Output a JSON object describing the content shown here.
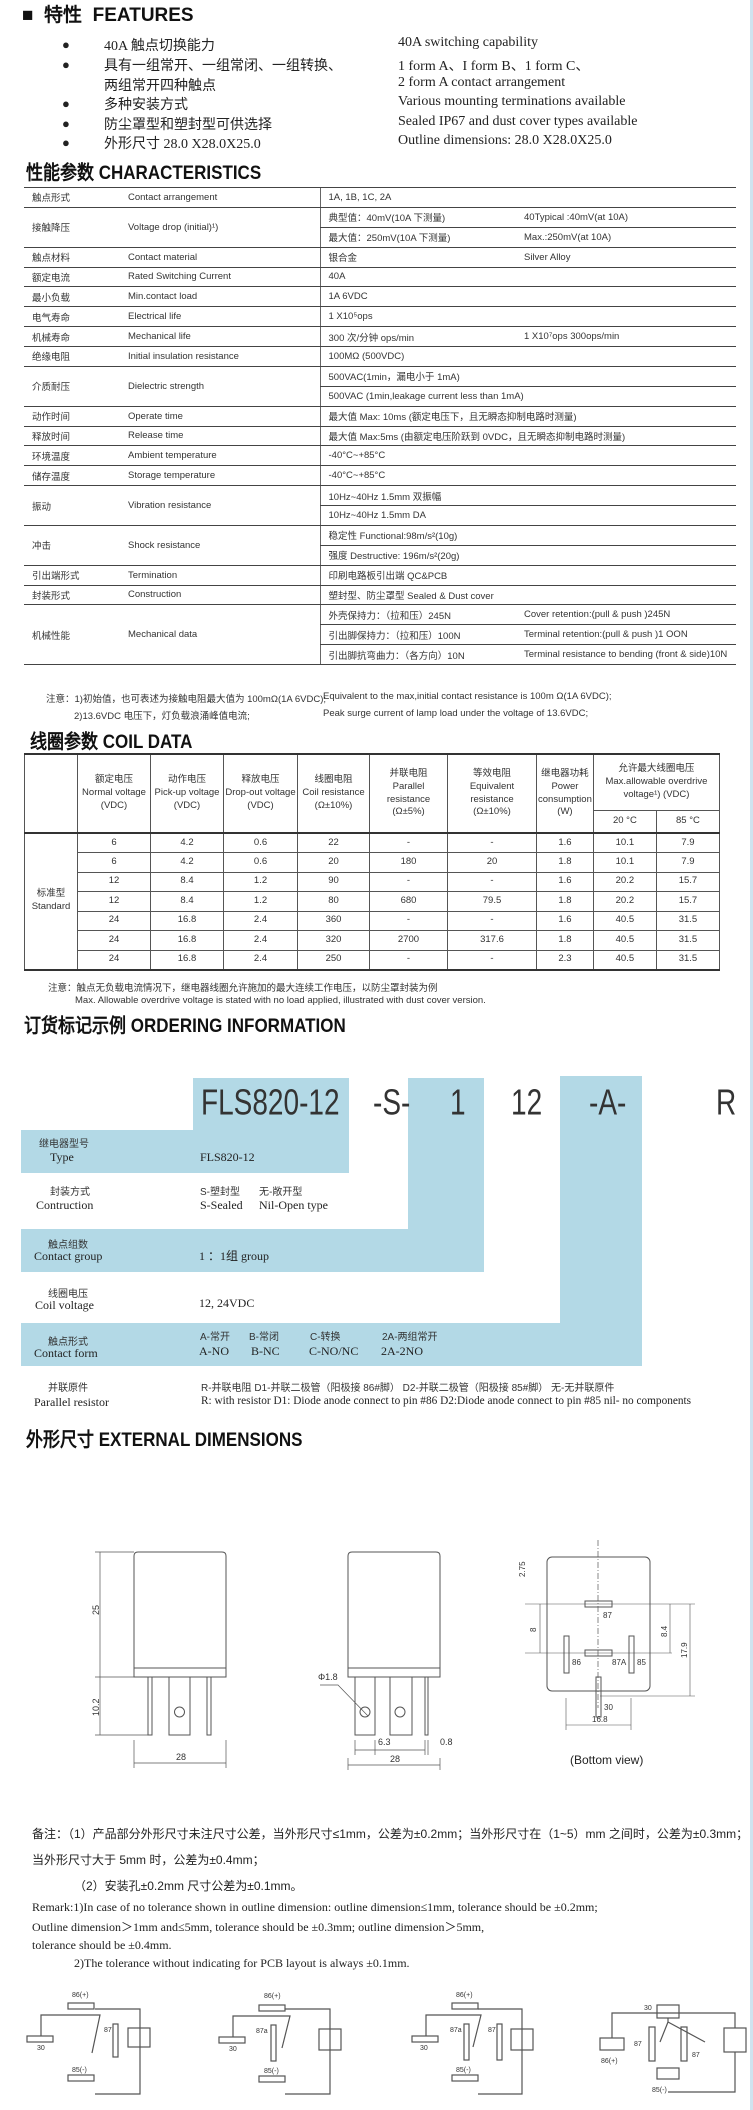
{
  "features": {
    "marker": "■",
    "title_cn": "特性",
    "title_en": "FEATURES",
    "items": [
      {
        "cn": "40A 触点切换能力",
        "en": "40A switching capability"
      },
      {
        "cn": "具有一组常开、一组常闭、一组转换、",
        "en": "1 form A、I form B、1 form C、"
      },
      {
        "cn": "两组常开四种触点",
        "en": "2 form A contact arrangement",
        "continuation": true
      },
      {
        "cn": "多种安装方式",
        "en": "Various mounting terminations available"
      },
      {
        "cn": "防尘罩型和塑封型可供选择",
        "en": "Sealed IP67 and dust cover types available"
      },
      {
        "cn": "外形尺寸 28.0 X28.0X25.0",
        "en": "Outline dimensions: 28.0 X28.0X25.0"
      }
    ]
  },
  "characteristics": {
    "title": "性能参数 CHARACTERISTICS",
    "rows": [
      {
        "cn": "触点形式",
        "en": "Contact arrangement",
        "values": [
          [
            "1A, 1B, 1C, 2A"
          ]
        ]
      },
      {
        "cn": "接触降压",
        "en": "Voltage drop (initial)¹)",
        "values": [
          [
            "典型值：40mV(10A 下测量)",
            "40Typical :40mV(at 10A)"
          ],
          [
            "最大值：250mV(10A 下测量)",
            "Max.:250mV(at 10A)"
          ]
        ]
      },
      {
        "cn": "触点材料",
        "en": "Contact material",
        "values": [
          [
            "银合金",
            "Silver Alloy"
          ]
        ]
      },
      {
        "cn": "额定电流",
        "en": "Rated Switching Current",
        "values": [
          [
            "40A"
          ]
        ]
      },
      {
        "cn": "最小负载",
        "en": "Min.contact load",
        "values": [
          [
            "1A 6VDC"
          ]
        ]
      },
      {
        "cn": "电气寿命",
        "en": "Electrical life",
        "values": [
          [
            "1 X10⁵ops"
          ]
        ]
      },
      {
        "cn": "机械寿命",
        "en": "Mechanical life",
        "values": [
          [
            "300 次/分钟 ops/min",
            "1 X10⁷ops 300ops/min"
          ]
        ]
      },
      {
        "cn": "绝缘电阻",
        "en": "Initial insulation resistance",
        "values": [
          [
            "100MΩ (500VDC)"
          ]
        ]
      },
      {
        "cn": "介质耐压",
        "en": "Dielectric strength",
        "values": [
          [
            "500VAC(1min，漏电小于 1mA)"
          ],
          [
            "500VAC (1min,leakage current less than 1mA)"
          ]
        ]
      },
      {
        "cn": "动作时间",
        "en": "Operate time",
        "values": [
          [
            "最大值 Max: 10ms (额定电压下，且无瞬态抑制电路时测量)"
          ]
        ]
      },
      {
        "cn": "释放时间",
        "en": "Release time",
        "values": [
          [
            "最大值 Max:5ms (由额定电压阶跃到 0VDC，且无瞬态抑制电路时测量)"
          ]
        ]
      },
      {
        "cn": "环境温度",
        "en": "Ambient temperature",
        "values": [
          [
            "-40°C~+85°C"
          ]
        ]
      },
      {
        "cn": "储存温度",
        "en": "Storage temperature",
        "values": [
          [
            "-40°C~+85°C"
          ]
        ]
      },
      {
        "cn": "振动",
        "en": "Vibration resistance",
        "values": [
          [
            "10Hz~40Hz 1.5mm 双振幅"
          ],
          [
            "10Hz~40Hz 1.5mm DA"
          ]
        ]
      },
      {
        "cn": "冲击",
        "en": "Shock resistance",
        "values": [
          [
            "稳定性 Functional:98m/s²(10g)"
          ],
          [
            "强度 Destructive: 196m/s²(20g)"
          ]
        ]
      },
      {
        "cn": "引出端形式",
        "en": "Termination",
        "values": [
          [
            "印刷电路板引出端    QC&PCB"
          ]
        ]
      },
      {
        "cn": "封装形式",
        "en": "Construction",
        "values": [
          [
            "塑封型、防尘罩型    Sealed & Dust cover"
          ]
        ]
      },
      {
        "cn": "机械性能",
        "en": "Mechanical data",
        "values": [
          [
            "外壳保持力：（拉和压）245N",
            "Cover retention:(pull & push )245N"
          ],
          [
            "引出脚保持力：（拉和压）100N",
            "Terminal retention:(pull & push )1 OON"
          ],
          [
            "引出脚抗弯曲力：（各方向）10N",
            "Terminal resistance to bending (front & side)10N"
          ]
        ]
      }
    ],
    "notes": [
      {
        "cn": "注意：1)初始值，也可表述为接触电阻最大值为 100mΩ(1A 6VDC);",
        "en": "Equivalent to the max,initial contact resistance is 100m Ω(1A 6VDC);"
      },
      {
        "cn": "2)13.6VDC 电压下，灯负载浪涌峰值电流;",
        "en": "Peak surge current of lamp load under the voltage of 13.6VDC;"
      }
    ]
  },
  "coil_data": {
    "title": "线圈参数 COIL DATA",
    "headers": [
      [
        "额定电压",
        "Normal voltage",
        "(VDC)"
      ],
      [
        "动作电压",
        "Pick-up voltage",
        "(VDC)"
      ],
      [
        "释放电压",
        "Drop-out voltage",
        "(VDC)"
      ],
      [
        "线圈电阻",
        "Coil resistance",
        "(Ω±10%)"
      ],
      [
        "并联电阻",
        "Parallel resistance",
        "(Ω±5%)"
      ],
      [
        "等效电阻",
        "Equivalent",
        "resistance",
        "(Ω±10%)"
      ],
      [
        "继电器功耗",
        "Power",
        "consumption",
        "(W)"
      ]
    ],
    "overdrive_header": [
      "允许最大线圈电压",
      "Max.allowable overdrive",
      "voltage¹) (VDC)"
    ],
    "temps": [
      "20 °C",
      "85 °C"
    ],
    "group_label": [
      "标准型",
      "Standard"
    ],
    "rows": [
      [
        "6",
        "4.2",
        "0.6",
        "22",
        "-",
        "-",
        "1.6",
        "10.1",
        "7.9"
      ],
      [
        "6",
        "4.2",
        "0.6",
        "20",
        "180",
        "20",
        "1.8",
        "10.1",
        "7.9"
      ],
      [
        "12",
        "8.4",
        "1.2",
        "90",
        "-",
        "-",
        "1.6",
        "20.2",
        "15.7"
      ],
      [
        "12",
        "8.4",
        "1.2",
        "80",
        "680",
        "79.5",
        "1.8",
        "20.2",
        "15.7"
      ],
      [
        "24",
        "16.8",
        "2.4",
        "360",
        "-",
        "-",
        "1.6",
        "40.5",
        "31.5"
      ],
      [
        "24",
        "16.8",
        "2.4",
        "320",
        "2700",
        "317.6",
        "1.8",
        "40.5",
        "31.5"
      ],
      [
        "24",
        "16.8",
        "2.4",
        "250",
        "-",
        "-",
        "2.3",
        "40.5",
        "31.5"
      ]
    ],
    "notes": [
      "注意：触点无负载电流情况下，继电器线圈允许施加的最大连续工作电压，以防尘罩封装为例",
      "Max. Allowable overdrive voltage is stated with no load applied, illustrated with dust cover version."
    ]
  },
  "ordering": {
    "title": "订货标记示例 ORDERING INFORMATION",
    "block_color": "#b3d9e6",
    "tokens": [
      "FLS820-12",
      "-S-",
      "1",
      "12",
      "-A-",
      "R"
    ],
    "rows": [
      {
        "cn": "继电器型号",
        "en": "Type",
        "options": [
          {
            "cn": "",
            "en": "FLS820-12"
          }
        ]
      },
      {
        "cn": "封装方式",
        "en": "Contruction",
        "options": [
          {
            "cn": "S-塑封型",
            "en": "S-Sealed"
          },
          {
            "cn": "无-敞开型",
            "en": "Nil-Open type"
          }
        ]
      },
      {
        "cn": "触点组数",
        "en": "Contact group",
        "options": [
          {
            "cn": "",
            "en": "1 ：1组 group"
          }
        ]
      },
      {
        "cn": "线圈电压",
        "en": "Coil voltage",
        "options": [
          {
            "cn": "",
            "en": "12, 24VDC"
          }
        ]
      },
      {
        "cn": "触点形式",
        "en": "Contact form",
        "options": [
          {
            "cn": "A-常开",
            "en": "A-NO"
          },
          {
            "cn": "B-常闭",
            "en": "B-NC"
          },
          {
            "cn": "C-转换",
            "en": "C-NO/NC"
          },
          {
            "cn": "2A-两组常开",
            "en": "2A-2NO"
          }
        ]
      },
      {
        "cn": "并联原件",
        "en": "Parallel resistor",
        "options_cn": "R-并联电阻      D1-并联二极管（阳极接 86#脚）   D2-并联二极管（阳极接 85#脚）  无-无并联原件",
        "options_en": "R: with resistor D1: Diode anode connect to pin #86 D2:Diode anode connect to pin #85 nil- no components"
      }
    ]
  },
  "dimensions": {
    "title": "外形尺寸 EXTERNAL DIMENSIONS",
    "front": {
      "height": "25",
      "pin_length": "10.2",
      "width": "28"
    },
    "side": {
      "hole": "Φ1.8",
      "tab": "6.3",
      "pin": "0.8",
      "width": "28"
    },
    "bottom": {
      "pins": [
        "87",
        "86",
        "87A",
        "85",
        "30"
      ],
      "dims": [
        "2.75",
        "8",
        "8.4",
        "17.9",
        "16.8"
      ],
      "caption": "(Bottom view)"
    },
    "remarks_cn": [
      "备注：（1）产品部分外形尺寸未注尺寸公差，当外形尺寸≤1mm，公差为±0.2mm；当外形尺寸在（1~5）mm 之间时，公差为±0.3mm；",
      "当外形尺寸大于 5mm 时，公差为±0.4mm；",
      "（2）安装孔±0.2mm 尺寸公差为±0.1mm。"
    ],
    "remarks_en": [
      "Remark:1)In case of no tolerance shown in outline dimension: outline dimension≤1mm, tolerance should be ±0.2mm;",
      "Outline dimension＞1mm and≤5mm, tolerance should be ±0.3mm; outline dimension＞5mm,",
      "tolerance should be ±0.4mm.",
      "2)The tolerance without indicating for PCB layout is always ±0.1mm."
    ]
  },
  "circuits": [
    {
      "labels": [
        "86(+)",
        "87",
        "30",
        "85(-)"
      ]
    },
    {
      "labels": [
        "86(+)",
        "87a",
        "30",
        "85(-)"
      ]
    },
    {
      "labels": [
        "86(+)",
        "87a",
        "87",
        "30",
        "85(-)"
      ]
    },
    {
      "labels": [
        "30",
        "87",
        "87",
        "86(+)",
        "85(-)"
      ]
    }
  ]
}
